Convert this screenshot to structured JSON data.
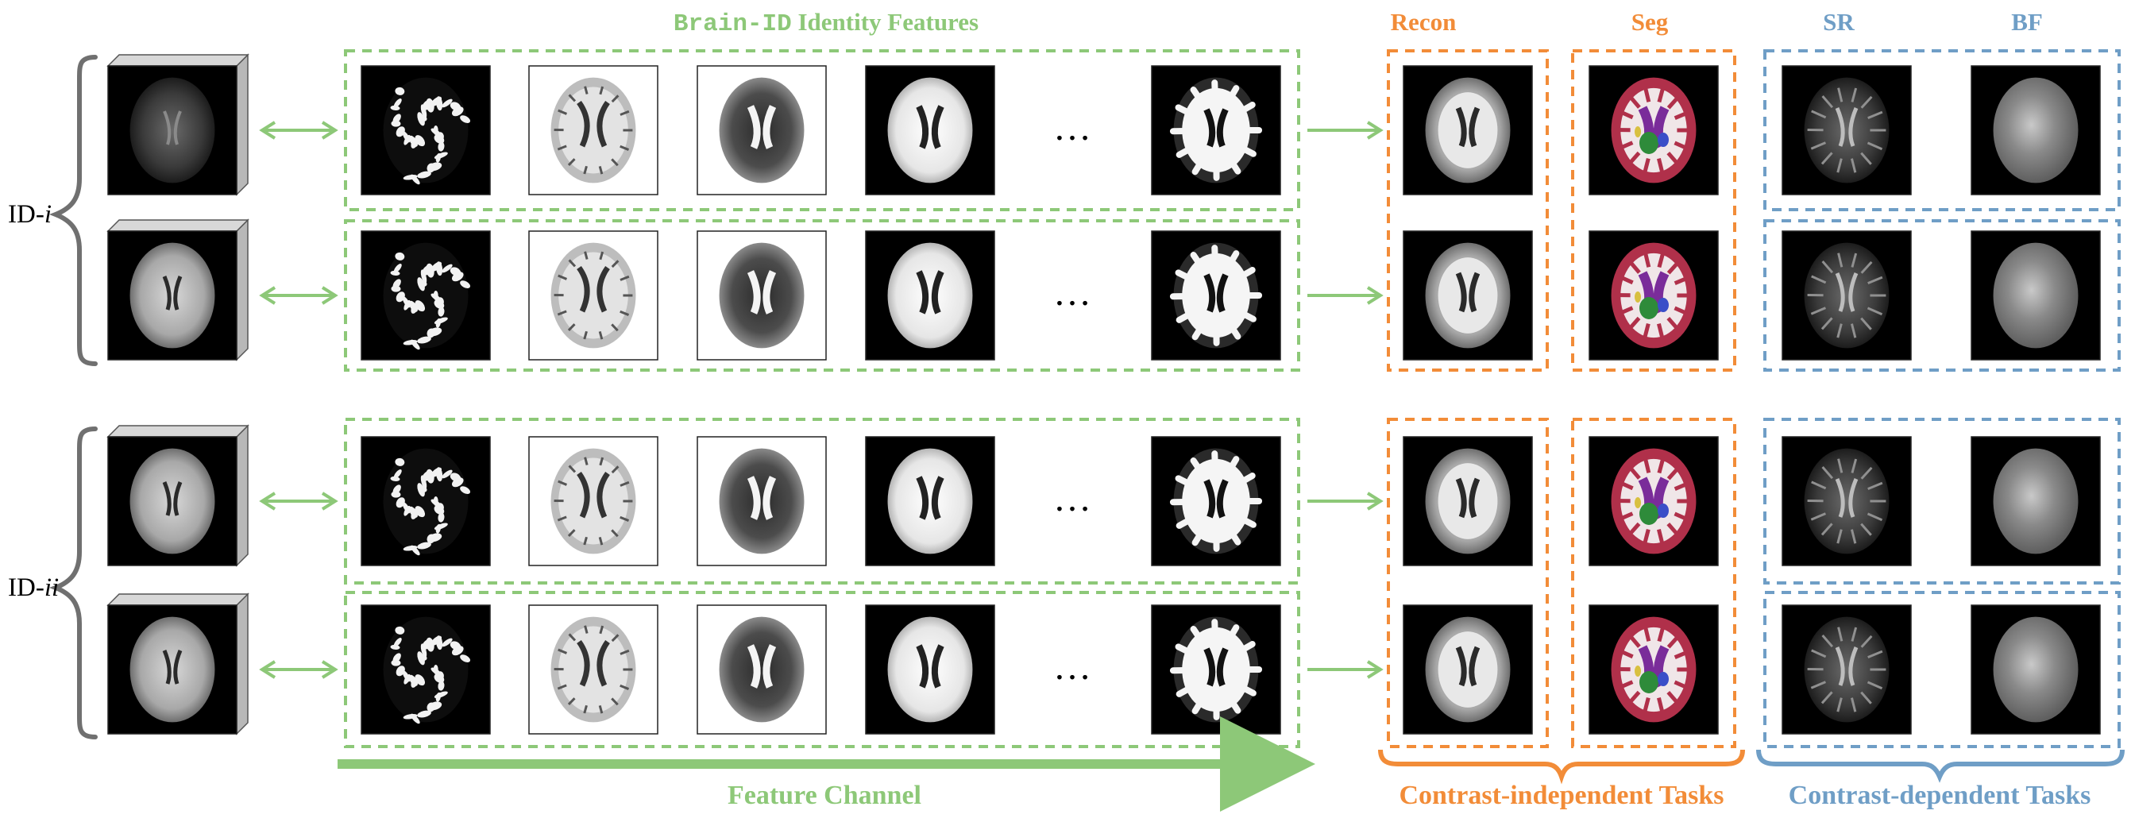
{
  "colors": {
    "green": "#8dc878",
    "orange": "#f28c38",
    "blue": "#6f9ec6",
    "brace": "#707070",
    "tile_black": "#000000",
    "tile_white": "#ffffff"
  },
  "header": {
    "features_title_mono": "Brain-ID",
    "features_title_rest": " Identity Features",
    "recon": "Recon",
    "seg": "Seg",
    "sr": "SR",
    "bf": "BF"
  },
  "groups": [
    {
      "label_prefix": "ID-",
      "label_italic": "i"
    },
    {
      "label_prefix": "ID-",
      "label_italic": "ii"
    }
  ],
  "feature_row": {
    "ellipsis": "…",
    "channels": [
      "sparse-white",
      "inverted-gray",
      "inverted-dark",
      "bright-white",
      "white-matter"
    ]
  },
  "footer": {
    "feature_channel": "Feature Channel",
    "contrast_independent": "Contrast-independent Tasks",
    "contrast_dependent": "Contrast-dependent Tasks"
  },
  "segmentation_colors": [
    "#b0304a",
    "#f0e6e8",
    "#2e8b3a",
    "#7a2c9a",
    "#3a4ec8",
    "#d8c040"
  ]
}
